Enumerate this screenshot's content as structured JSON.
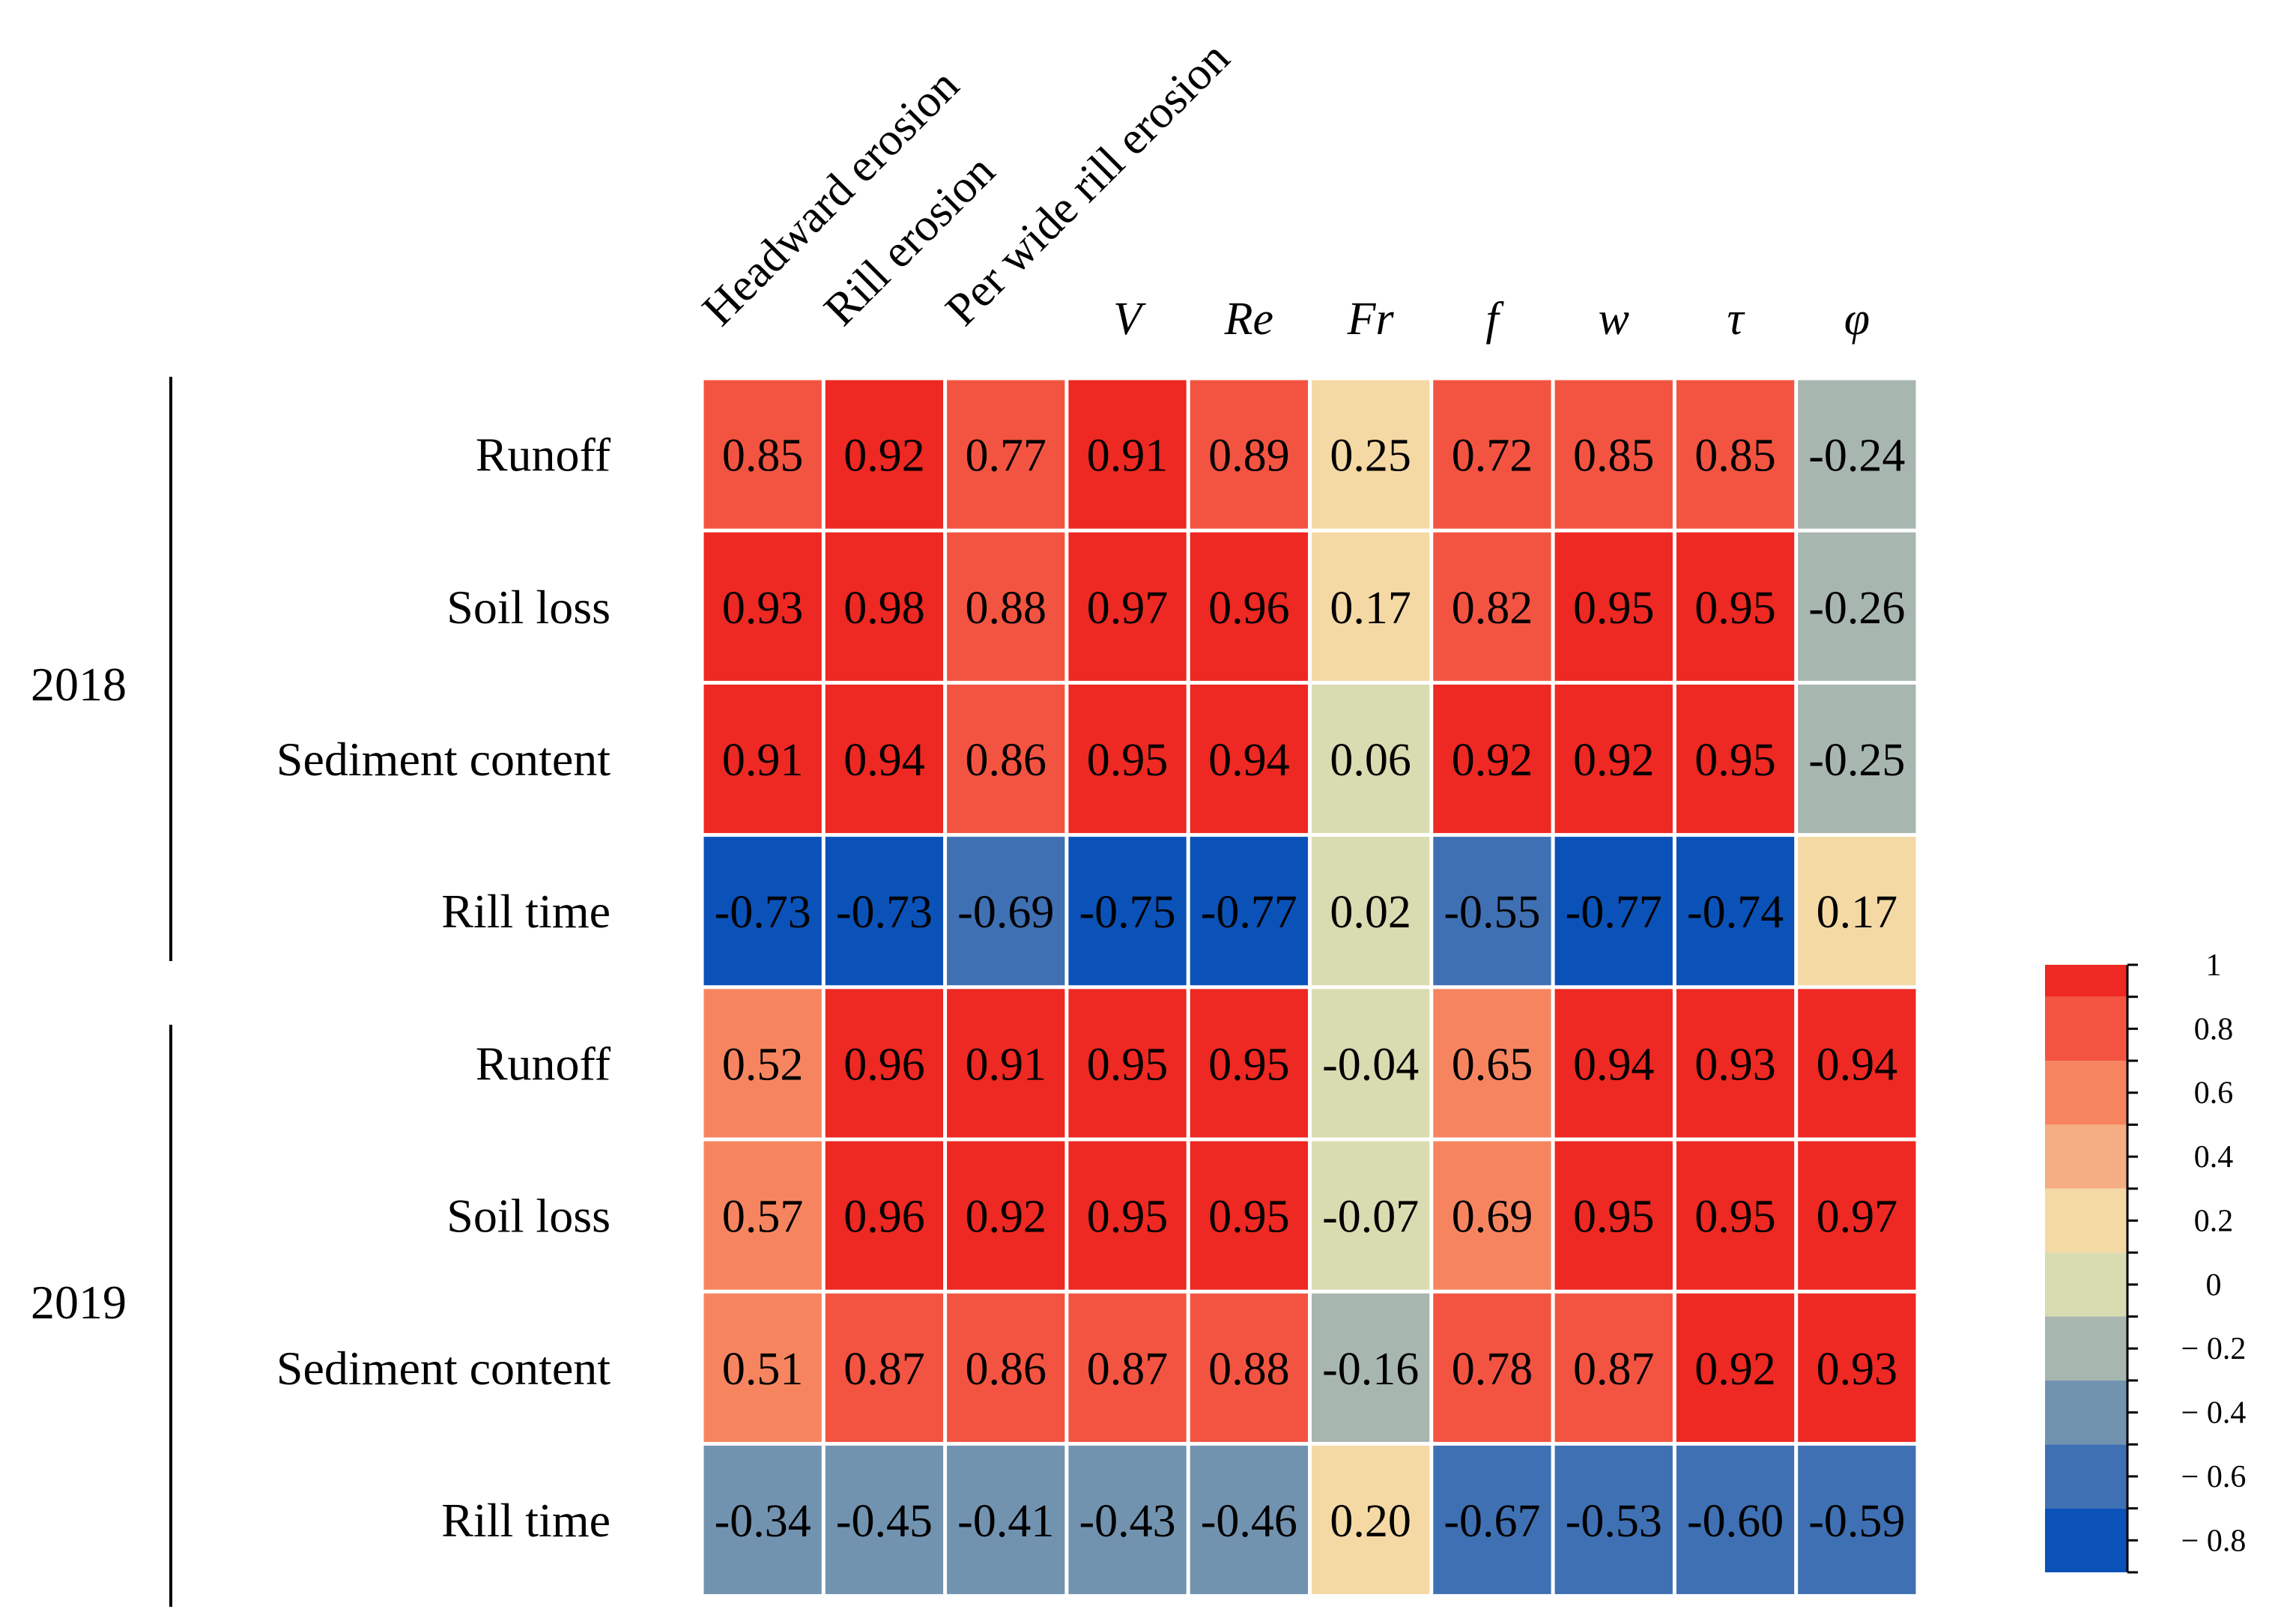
{
  "chart_data": {
    "type": "heatmap",
    "columns": [
      {
        "label": "Headward erosion",
        "italic": false,
        "rotated": true
      },
      {
        "label": "Rill erosion",
        "italic": false,
        "rotated": true
      },
      {
        "label": "Per wide rill erosion",
        "italic": false,
        "rotated": true
      },
      {
        "label": "V",
        "italic": true,
        "rotated": false
      },
      {
        "label": "Re",
        "italic": true,
        "rotated": false
      },
      {
        "label": "Fr",
        "italic": true,
        "rotated": false
      },
      {
        "label": "f",
        "italic": true,
        "rotated": false
      },
      {
        "label": "w",
        "italic": true,
        "rotated": false
      },
      {
        "label": "τ",
        "italic": true,
        "rotated": false
      },
      {
        "label": "φ",
        "italic": true,
        "rotated": false
      }
    ],
    "groups": [
      {
        "label": "2018",
        "rows": [
          {
            "label": "Runoff",
            "values": [
              "0.85",
              "0.92",
              "0.77",
              "0.91",
              "0.89",
              "0.25",
              "0.72",
              "0.85",
              "0.85",
              "-0.24"
            ]
          },
          {
            "label": "Soil loss",
            "values": [
              "0.93",
              "0.98",
              "0.88",
              "0.97",
              "0.96",
              "0.17",
              "0.82",
              "0.95",
              "0.95",
              "-0.26"
            ]
          },
          {
            "label": "Sediment content",
            "values": [
              "0.91",
              "0.94",
              "0.86",
              "0.95",
              "0.94",
              "0.06",
              "0.92",
              "0.92",
              "0.95",
              "-0.25"
            ]
          },
          {
            "label": "Rill time",
            "values": [
              "-0.73",
              "-0.73",
              "-0.69",
              "-0.75",
              "-0.77",
              "0.02",
              "-0.55",
              "-0.77",
              "-0.74",
              "0.17"
            ]
          }
        ]
      },
      {
        "label": "2019",
        "rows": [
          {
            "label": "Runoff",
            "values": [
              "0.52",
              "0.96",
              "0.91",
              "0.95",
              "0.95",
              "-0.04",
              "0.65",
              "0.94",
              "0.93",
              "0.94"
            ]
          },
          {
            "label": "Soil loss",
            "values": [
              "0.57",
              "0.96",
              "0.92",
              "0.95",
              "0.95",
              "-0.07",
              "0.69",
              "0.95",
              "0.95",
              "0.97"
            ]
          },
          {
            "label": "Sediment content",
            "values": [
              "0.51",
              "0.87",
              "0.86",
              "0.87",
              "0.88",
              "-0.16",
              "0.78",
              "0.87",
              "0.92",
              "0.93"
            ]
          },
          {
            "label": "Rill time",
            "values": [
              "-0.34",
              "-0.45",
              "-0.41",
              "-0.43",
              "-0.46",
              "0.20",
              "-0.67",
              "-0.53",
              "-0.60",
              "-0.59"
            ]
          }
        ]
      }
    ],
    "colorbar": {
      "range": [
        -0.8,
        1.0
      ],
      "bins": [
        {
          "from": 0.9,
          "to": 1.0,
          "color": "#ee2822"
        },
        {
          "from": 0.7,
          "to": 0.9,
          "color": "#f35441"
        },
        {
          "from": 0.5,
          "to": 0.7,
          "color": "#f6855f"
        },
        {
          "from": 0.3,
          "to": 0.5,
          "color": "#f5ad84"
        },
        {
          "from": 0.1,
          "to": 0.3,
          "color": "#f5d9a4"
        },
        {
          "from": -0.1,
          "to": 0.1,
          "color": "#d8dcb0"
        },
        {
          "from": -0.3,
          "to": -0.1,
          "color": "#a8b6b0"
        },
        {
          "from": -0.5,
          "to": -0.3,
          "color": "#7293b0"
        },
        {
          "from": -0.7,
          "to": -0.5,
          "color": "#3f70b3"
        },
        {
          "from": -0.9,
          "to": -0.7,
          "color": "#0a52b8"
        }
      ],
      "ticks": [
        {
          "value": 1.0,
          "label": "1"
        },
        {
          "value": 0.8,
          "label": "0.8"
        },
        {
          "value": 0.6,
          "label": "0.6"
        },
        {
          "value": 0.4,
          "label": "0.4"
        },
        {
          "value": 0.2,
          "label": "0.2"
        },
        {
          "value": 0.0,
          "label": "0"
        },
        {
          "value": -0.2,
          "label": "− 0.2"
        },
        {
          "value": -0.4,
          "label": "− 0.4"
        },
        {
          "value": -0.6,
          "label": "− 0.6"
        },
        {
          "value": -0.8,
          "label": "− 0.8"
        }
      ]
    }
  }
}
